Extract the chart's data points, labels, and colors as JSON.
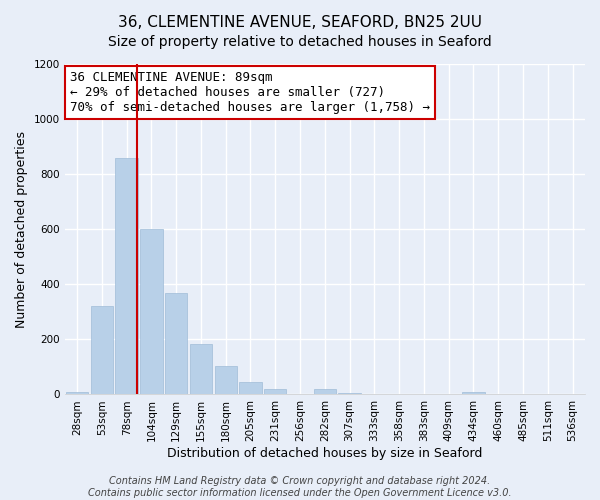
{
  "title": "36, CLEMENTINE AVENUE, SEAFORD, BN25 2UU",
  "subtitle": "Size of property relative to detached houses in Seaford",
  "xlabel": "Distribution of detached houses by size in Seaford",
  "ylabel": "Number of detached properties",
  "bar_labels": [
    "28sqm",
    "53sqm",
    "78sqm",
    "104sqm",
    "129sqm",
    "155sqm",
    "180sqm",
    "205sqm",
    "231sqm",
    "256sqm",
    "282sqm",
    "307sqm",
    "333sqm",
    "358sqm",
    "383sqm",
    "409sqm",
    "434sqm",
    "460sqm",
    "485sqm",
    "511sqm",
    "536sqm"
  ],
  "bar_values": [
    10,
    320,
    860,
    600,
    370,
    185,
    105,
    45,
    20,
    0,
    20,
    5,
    0,
    0,
    0,
    0,
    10,
    0,
    0,
    0,
    0
  ],
  "bar_color": "#b8d0e8",
  "bar_edge_color": "#a0bcd8",
  "vline_color": "#cc0000",
  "vline_x": 2.42,
  "annotation_line1": "36 CLEMENTINE AVENUE: 89sqm",
  "annotation_line2": "← 29% of detached houses are smaller (727)",
  "annotation_line3": "70% of semi-detached houses are larger (1,758) →",
  "annotation_box_color": "#ffffff",
  "annotation_box_edgecolor": "#cc0000",
  "ylim": [
    0,
    1200
  ],
  "yticks": [
    0,
    200,
    400,
    600,
    800,
    1000,
    1200
  ],
  "footer1": "Contains HM Land Registry data © Crown copyright and database right 2024.",
  "footer2": "Contains public sector information licensed under the Open Government Licence v3.0.",
  "title_fontsize": 11,
  "subtitle_fontsize": 10,
  "xlabel_fontsize": 9,
  "ylabel_fontsize": 9,
  "tick_fontsize": 7.5,
  "annotation_fontsize": 9,
  "footer_fontsize": 7,
  "background_color": "#e8eef8",
  "plot_background_color": "#e8eef8",
  "grid_color": "#ffffff"
}
